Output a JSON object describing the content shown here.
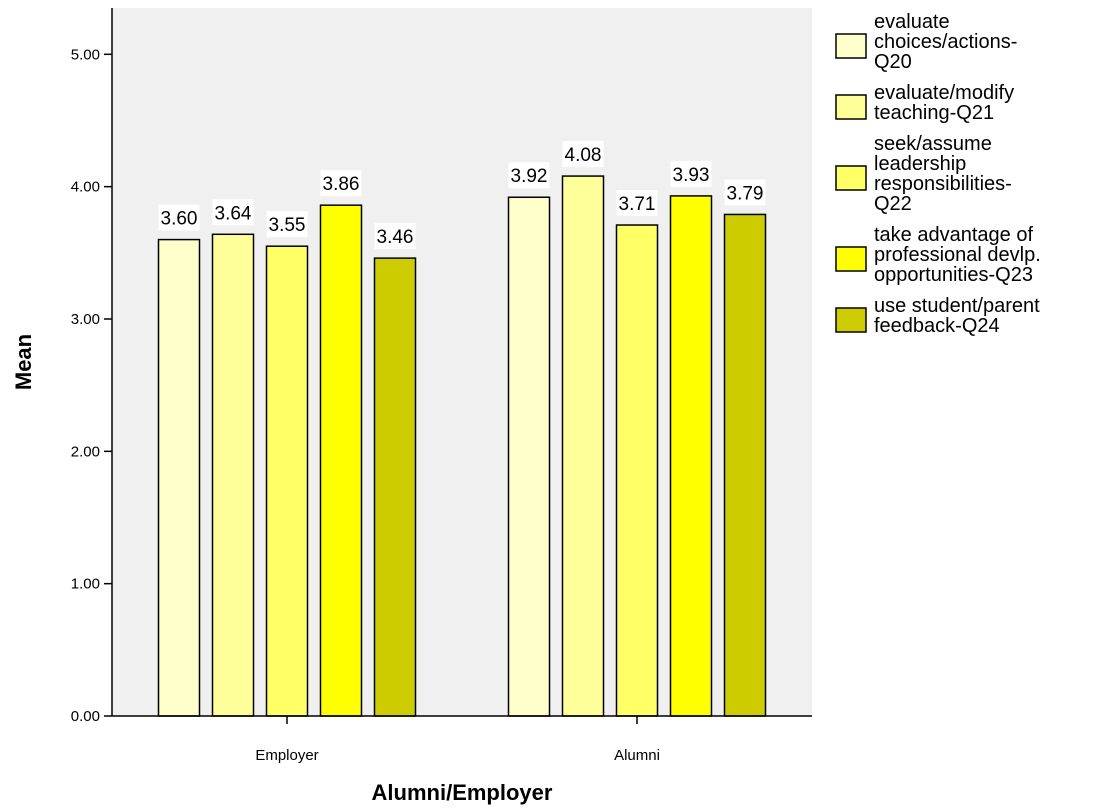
{
  "chart_data": {
    "type": "bar",
    "categories": [
      "Employer",
      "Alumni"
    ],
    "series": [
      {
        "name": "evaluate choices/actions-Q20",
        "legend_lines": [
          "evaluate",
          "choices/actions-",
          "Q20"
        ],
        "color": "#FFFFCC",
        "values": [
          3.6,
          3.92
        ]
      },
      {
        "name": "evaluate/modify teaching-Q21",
        "legend_lines": [
          "evaluate/modify",
          "teaching-Q21"
        ],
        "color": "#FFFF99",
        "values": [
          3.64,
          4.08
        ]
      },
      {
        "name": "seek/assume leadership responsibilities-Q22",
        "legend_lines": [
          "seek/assume",
          "leadership",
          "responsibilities-",
          "Q22"
        ],
        "color": "#FFFF66",
        "values": [
          3.55,
          3.71
        ]
      },
      {
        "name": "take advantage of professional devlp. opportunities-Q23",
        "legend_lines": [
          "take advantage of",
          "professional devlp.",
          "opportunities-Q23"
        ],
        "color": "#FFFF00",
        "values": [
          3.86,
          3.93
        ]
      },
      {
        "name": "use student/parent feedback-Q24",
        "legend_lines": [
          "use student/parent",
          "feedback-Q24"
        ],
        "color": "#CCCC00",
        "values": [
          3.46,
          3.79
        ]
      }
    ],
    "data_labels": [
      [
        "3.60",
        "3.92"
      ],
      [
        "3.64",
        "4.08"
      ],
      [
        "3.55",
        "3.71"
      ],
      [
        "3.86",
        "3.93"
      ],
      [
        "3.46",
        "3.79"
      ]
    ],
    "xlabel": "Alumni/Employer",
    "ylabel": "Mean",
    "ylim": [
      0,
      5.35
    ],
    "yticks": [
      0,
      1,
      2,
      3,
      4,
      5
    ],
    "ytick_labels": [
      "0.00",
      "1.00",
      "2.00",
      "3.00",
      "4.00",
      "5.00"
    ],
    "plot_background": "#F0F0F0",
    "grid": false,
    "legend_position": "right"
  }
}
